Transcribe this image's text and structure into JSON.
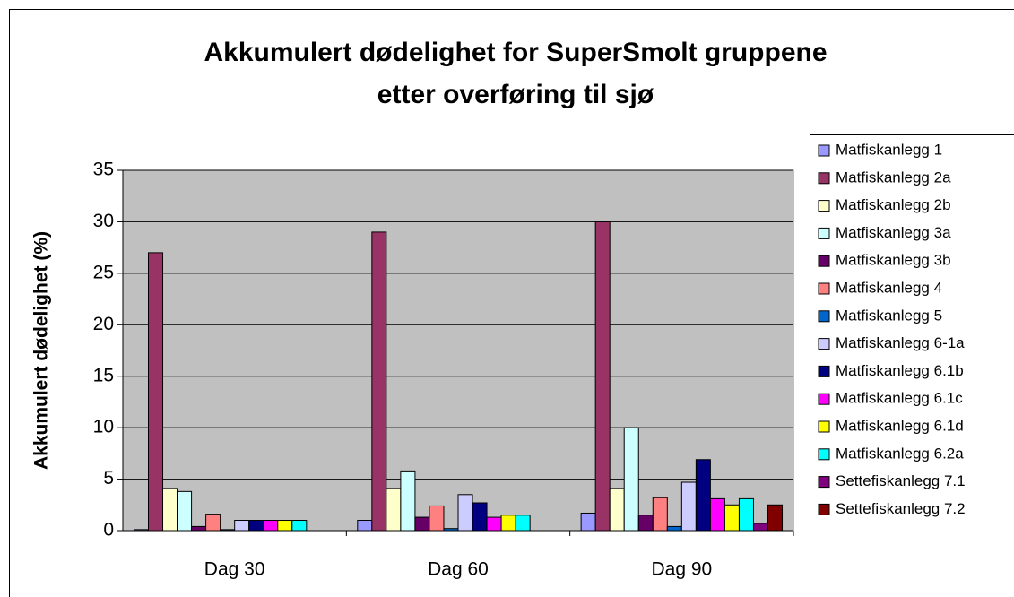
{
  "chart_data": {
    "type": "bar",
    "title": [
      "Akkumulert dødelighet for SuperSmolt gruppene",
      "etter overføring til sjø"
    ],
    "y_label": "Akkumulert dødelighet (%)",
    "categories": [
      "Dag 30",
      "Dag 60",
      "Dag 90"
    ],
    "ylim": [
      0,
      35
    ],
    "yticks": [
      0,
      5,
      10,
      15,
      20,
      25,
      30,
      35
    ],
    "grid": true,
    "legend": "right",
    "series": [
      {
        "name": "Matfiskanlegg 1",
        "color": "#9999ff",
        "values": [
          0.1,
          1.0,
          1.7
        ]
      },
      {
        "name": "Matfiskanlegg 2a",
        "color": "#993366",
        "values": [
          27,
          29,
          30
        ]
      },
      {
        "name": "Matfiskanlegg 2b",
        "color": "#ffffcc",
        "values": [
          4.1,
          4.1,
          4.1
        ]
      },
      {
        "name": "Matfiskanlegg 3a",
        "color": "#ccffff",
        "values": [
          3.8,
          5.8,
          10
        ]
      },
      {
        "name": "Matfiskanlegg 3b",
        "color": "#660066",
        "values": [
          0.4,
          1.3,
          1.5
        ]
      },
      {
        "name": "Matfiskanlegg 4",
        "color": "#ff8080",
        "values": [
          1.6,
          2.4,
          3.2
        ]
      },
      {
        "name": "Matfiskanlegg 5",
        "color": "#0066cc",
        "values": [
          0.1,
          0.2,
          0.4
        ]
      },
      {
        "name": "Matfiskanlegg 6-1a",
        "color": "#ccccff",
        "values": [
          1.0,
          3.5,
          4.7
        ]
      },
      {
        "name": "Matfiskanlegg 6.1b",
        "color": "#000080",
        "values": [
          1.0,
          2.7,
          6.9
        ]
      },
      {
        "name": "Matfiskanlegg 6.1c",
        "color": "#ff00ff",
        "values": [
          1.0,
          1.3,
          3.1
        ]
      },
      {
        "name": "Matfiskanlegg 6.1d",
        "color": "#ffff00",
        "values": [
          1.0,
          1.5,
          2.5
        ]
      },
      {
        "name": "Matfiskanlegg 6.2a",
        "color": "#00ffff",
        "values": [
          1.0,
          1.5,
          3.1
        ]
      },
      {
        "name": "Settefiskanlegg 7.1",
        "color": "#800080",
        "values": [
          0,
          0,
          0.7
        ]
      },
      {
        "name": "Settefiskanlegg 7.2",
        "color": "#800000",
        "values": [
          0,
          0,
          2.5
        ]
      }
    ]
  }
}
